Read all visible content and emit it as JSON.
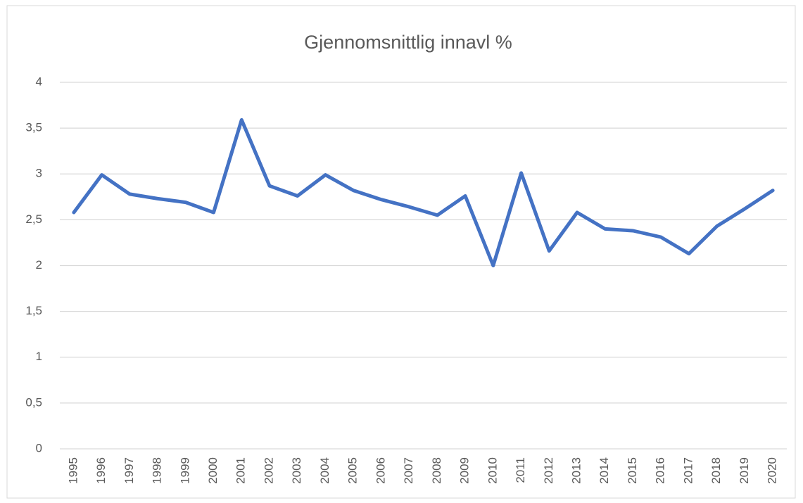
{
  "chart_data": {
    "type": "line",
    "title": "Gjennomsnittlig innavl %",
    "categories": [
      "1995",
      "1996",
      "1997",
      "1998",
      "1999",
      "2000",
      "2001",
      "2002",
      "2003",
      "2004",
      "2005",
      "2006",
      "2007",
      "2008",
      "2009",
      "2010",
      "2011",
      "2012",
      "2013",
      "2014",
      "2015",
      "2016",
      "2017",
      "2018",
      "2019",
      "2020"
    ],
    "values": [
      2.58,
      2.99,
      2.78,
      2.73,
      2.69,
      2.58,
      3.59,
      2.87,
      2.76,
      2.99,
      2.82,
      2.72,
      2.64,
      2.55,
      2.76,
      2.0,
      3.01,
      2.16,
      2.58,
      2.4,
      2.38,
      2.31,
      2.13,
      2.43,
      2.62,
      2.82
    ],
    "color": "#4472c4",
    "ylim": [
      0,
      4
    ],
    "yticks": [
      0,
      {
        "value": 0.5,
        "label": "0,5"
      },
      1,
      {
        "value": 1.5,
        "label": "1,5"
      },
      2,
      {
        "value": 2.5,
        "label": "2,5"
      },
      3,
      {
        "value": 3.5,
        "label": "3,5"
      },
      4
    ],
    "grid": true
  }
}
